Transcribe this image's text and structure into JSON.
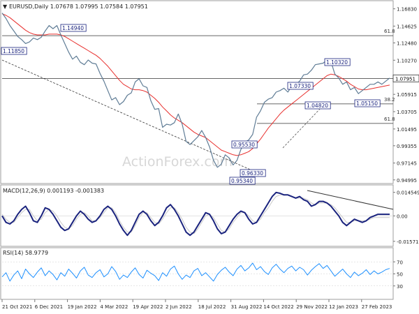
{
  "chart_data": [
    {
      "type": "line",
      "panel": "price",
      "title": "EURUSD,Daily  1.07678  1.07995  1.07584  1.07951",
      "y_ticks": [
        "1.16830",
        "1.14625",
        "1.12480",
        "1.10270",
        "1.08135",
        "1.05915",
        "1.03705",
        "1.01495",
        "0.99355",
        "0.97145",
        "0.94995"
      ],
      "ylim": [
        0.948,
        1.176
      ],
      "current_price": "1.07951",
      "series": [
        {
          "name": "EURUSD",
          "color": "#607d96",
          "values": [
            1.163,
            1.156,
            1.147,
            1.14,
            1.133,
            1.129,
            1.124,
            1.126,
            1.131,
            1.129,
            1.132,
            1.14,
            1.147,
            1.143,
            1.147,
            1.135,
            1.124,
            1.113,
            1.104,
            1.108,
            1.1,
            1.097,
            1.103,
            1.099,
            1.098,
            1.086,
            1.076,
            1.064,
            1.052,
            1.055,
            1.046,
            1.05,
            1.058,
            1.061,
            1.075,
            1.079,
            1.07,
            1.068,
            1.051,
            1.04,
            1.041,
            1.017,
            1.021,
            1.02,
            1.023,
            1.034,
            1.021,
            0.999,
            0.995,
            1.0,
            1.005,
            1.013,
            1.004,
            0.992,
            0.975,
            0.966,
            0.97,
            0.982,
            0.978,
            0.969,
            0.975,
            0.989,
            0.998,
            1.001,
            1.008,
            1.03,
            1.038,
            1.049,
            1.053,
            1.055,
            1.062,
            1.064,
            1.067,
            1.062,
            1.07,
            1.072,
            1.076,
            1.084,
            1.085,
            1.09,
            1.097,
            1.098,
            1.099,
            1.103,
            1.101,
            1.085,
            1.08,
            1.072,
            1.075,
            1.065,
            1.068,
            1.06,
            1.064,
            1.068,
            1.072,
            1.072,
            1.075,
            1.072,
            1.076,
            1.08
          ]
        },
        {
          "name": "MA",
          "color": "#e8302e",
          "values": [
            1.162,
            1.16,
            1.157,
            1.153,
            1.149,
            1.145,
            1.141,
            1.138,
            1.136,
            1.135,
            1.135,
            1.135,
            1.136,
            1.136,
            1.136,
            1.135,
            1.133,
            1.13,
            1.127,
            1.124,
            1.121,
            1.118,
            1.115,
            1.112,
            1.109,
            1.105,
            1.1,
            1.095,
            1.089,
            1.083,
            1.077,
            1.072,
            1.069,
            1.066,
            1.065,
            1.065,
            1.064,
            1.062,
            1.058,
            1.054,
            1.049,
            1.043,
            1.038,
            1.033,
            1.029,
            1.026,
            1.023,
            1.019,
            1.015,
            1.011,
            1.008,
            1.006,
            1.004,
            1.0,
            0.996,
            0.992,
            0.988,
            0.986,
            0.984,
            0.982,
            0.981,
            0.982,
            0.984,
            0.986,
            0.99,
            0.996,
            1.002,
            1.009,
            1.016,
            1.022,
            1.028,
            1.034,
            1.039,
            1.043,
            1.047,
            1.051,
            1.055,
            1.059,
            1.063,
            1.067,
            1.071,
            1.075,
            1.079,
            1.083,
            1.085,
            1.084,
            1.082,
            1.079,
            1.076,
            1.072,
            1.069,
            1.066,
            1.065,
            1.065,
            1.066,
            1.067,
            1.068,
            1.069,
            1.07,
            1.071
          ]
        }
      ],
      "annotations": [
        "1.14940",
        "1.11850",
        "1.10320",
        "1.07330",
        "1.04820",
        "1.05150",
        "0.95530",
        "0.96330",
        "0.95340"
      ],
      "fib_labels": [
        "61.8",
        "38.2",
        "61.8"
      ],
      "horizontal_levels": [
        1.134,
        1.0795,
        1.047,
        1.022
      ]
    },
    {
      "type": "line",
      "panel": "macd",
      "title": "MACD(12,26,9) 0.001193 -0.001383",
      "y_ticks": [
        "0.014549",
        "0.00",
        "-0.015712"
      ],
      "ylim": [
        -0.0175,
        0.017
      ],
      "series": [
        {
          "name": "MACD",
          "color": "#1a237e",
          "values": [
            0.0,
            -0.004,
            -0.005,
            -0.003,
            0.001,
            0.004,
            0.006,
            0.002,
            -0.003,
            -0.004,
            0.0,
            0.005,
            0.004,
            0.001,
            -0.003,
            -0.007,
            -0.009,
            -0.008,
            -0.004,
            0.0,
            0.003,
            0.001,
            -0.002,
            -0.004,
            -0.003,
            0.0,
            0.004,
            0.006,
            0.004,
            0.0,
            -0.005,
            -0.009,
            -0.012,
            -0.009,
            -0.004,
            0.001,
            0.003,
            0.001,
            -0.003,
            -0.006,
            -0.004,
            0.0,
            0.005,
            0.007,
            0.004,
            0.0,
            -0.005,
            -0.01,
            -0.012,
            -0.01,
            -0.006,
            -0.002,
            0.002,
            0.001,
            -0.003,
            -0.008,
            -0.011,
            -0.01,
            -0.006,
            -0.002,
            0.001,
            0.003,
            0.002,
            -0.002,
            -0.005,
            -0.004,
            0.0,
            0.004,
            0.008,
            0.012,
            0.0145,
            0.014,
            0.013,
            0.013,
            0.012,
            0.011,
            0.012,
            0.01,
            0.009,
            0.006,
            0.007,
            0.009,
            0.009,
            0.008,
            0.006,
            0.003,
            0.0,
            -0.004,
            -0.006,
            -0.004,
            -0.002,
            -0.003,
            -0.004,
            -0.003,
            -0.001,
            0.0,
            0.001,
            0.001,
            0.001,
            0.001
          ]
        },
        {
          "name": "Signal",
          "color": "#c9c9c9",
          "values": [
            0.001,
            -0.002,
            -0.004,
            -0.004,
            -0.001,
            0.002,
            0.004,
            0.004,
            0.0,
            -0.003,
            -0.002,
            0.002,
            0.004,
            0.003,
            0.0,
            -0.004,
            -0.007,
            -0.008,
            -0.006,
            -0.002,
            0.001,
            0.002,
            0.0,
            -0.003,
            -0.003,
            -0.001,
            0.002,
            0.005,
            0.005,
            0.002,
            -0.003,
            -0.007,
            -0.01,
            -0.01,
            -0.006,
            -0.001,
            0.002,
            0.002,
            -0.001,
            -0.004,
            -0.005,
            -0.002,
            0.002,
            0.005,
            0.005,
            0.002,
            -0.002,
            -0.007,
            -0.01,
            -0.011,
            -0.008,
            -0.004,
            0.0,
            0.001,
            -0.001,
            -0.005,
            -0.009,
            -0.01,
            -0.008,
            -0.004,
            -0.001,
            0.002,
            0.002,
            0.0,
            -0.003,
            -0.004,
            -0.002,
            0.002,
            0.005,
            0.009,
            0.012,
            0.013,
            0.013,
            0.013,
            0.012,
            0.011,
            0.011,
            0.011,
            0.01,
            0.008,
            0.007,
            0.008,
            0.008,
            0.008,
            0.007,
            0.005,
            0.002,
            -0.001,
            -0.004,
            -0.004,
            -0.003,
            -0.003,
            -0.003,
            -0.003,
            -0.002,
            -0.001,
            -0.001,
            -0.001,
            -0.001,
            -0.001
          ]
        }
      ]
    },
    {
      "type": "line",
      "panel": "rsi",
      "title": "RSI(14) 58.9779",
      "y_ticks": [
        "70",
        "50",
        "30"
      ],
      "ylim": [
        10,
        90
      ],
      "series": [
        {
          "name": "RSI",
          "color": "#1e90ff",
          "values": [
            45,
            52,
            38,
            48,
            55,
            42,
            58,
            50,
            44,
            53,
            60,
            47,
            55,
            49,
            40,
            52,
            46,
            58,
            51,
            43,
            55,
            61,
            48,
            44,
            52,
            57,
            45,
            50,
            62,
            54,
            41,
            48,
            44,
            53,
            60,
            49,
            43,
            56,
            51,
            47,
            39,
            52,
            46,
            58,
            63,
            50,
            41,
            48,
            44,
            55,
            59,
            47,
            52,
            45,
            38,
            49,
            56,
            61,
            53,
            47,
            58,
            64,
            55,
            60,
            68,
            57,
            62,
            54,
            49,
            60,
            66,
            58,
            52,
            59,
            63,
            55,
            61,
            57,
            48,
            56,
            62,
            67,
            59,
            64,
            55,
            46,
            52,
            58,
            50,
            44,
            53,
            47,
            51,
            57,
            49,
            55,
            50,
            53,
            57,
            59
          ]
        }
      ]
    }
  ],
  "x_labels": [
    "21 Oct 2021",
    "6 Dec 2021",
    "19 Jan 2022",
    "4 Mar 2022",
    "19 Apr 2022",
    "2 Jun 2022",
    "18 Jul 2022",
    "31 Aug 2022",
    "14 Oct 2022",
    "29 Nov 2022",
    "12 Jan 2023",
    "27 Feb 2023"
  ],
  "watermark": "ActionForex.com"
}
